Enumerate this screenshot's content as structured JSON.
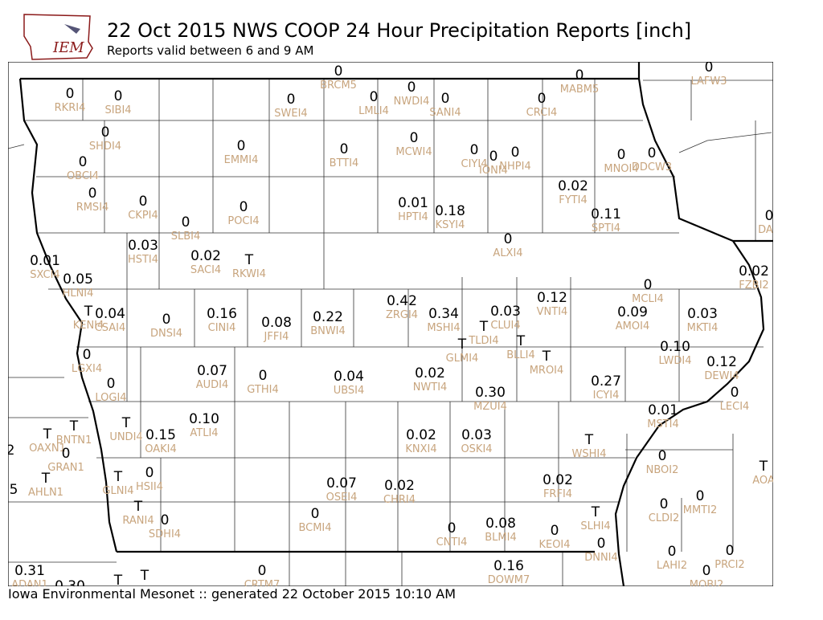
{
  "header": {
    "title": "22 Oct 2015 NWS COOP 24 Hour Precipitation Reports [inch]",
    "subtitle": "Reports valid between 6 and 9 AM",
    "logo_text": "IEM"
  },
  "footer": "Iowa Environmental Mesonet :: generated 22 October 2015 10:10 AM",
  "stations": [
    {
      "value": "0",
      "id": "BRCM5"
    },
    {
      "value": "0",
      "id": "RKRI4"
    },
    {
      "value": "0",
      "id": "SIBI4"
    },
    {
      "value": "0",
      "id": "SWEI4"
    },
    {
      "value": "0",
      "id": "LMLI4"
    },
    {
      "value": "0",
      "id": "NWDI4"
    },
    {
      "value": "0",
      "id": "SANI4"
    },
    {
      "value": "0",
      "id": "CRCI4"
    },
    {
      "value": "0",
      "id": "MABM5"
    },
    {
      "value": "0",
      "id": "LAFW3"
    },
    {
      "value": "0",
      "id": "SHDI4"
    },
    {
      "value": "0",
      "id": "OBCI4"
    },
    {
      "value": "0",
      "id": "EMMI4"
    },
    {
      "value": "0",
      "id": "BTTI4"
    },
    {
      "value": "0",
      "id": "MCWI4"
    },
    {
      "value": "0",
      "id": "CIYI4"
    },
    {
      "value": "0",
      "id": "IONI4"
    },
    {
      "value": "0",
      "id": "NHPI4"
    },
    {
      "value": "0",
      "id": "MNOI4"
    },
    {
      "value": "0",
      "id": "DDCW3"
    },
    {
      "value": "0.02",
      "id": "FYTI4"
    },
    {
      "value": "0",
      "id": "RMSI4"
    },
    {
      "value": "0",
      "id": "CKPI4"
    },
    {
      "value": "0",
      "id": "SLBI4"
    },
    {
      "value": "0",
      "id": "POCI4"
    },
    {
      "value": "0.01",
      "id": "HPTI4"
    },
    {
      "value": "0.18",
      "id": "KSYI4"
    },
    {
      "value": "0.11",
      "id": "SPTI4"
    },
    {
      "value": "0",
      "id": "DAR"
    },
    {
      "value": "0",
      "id": "ALXI4"
    },
    {
      "value": "0.03",
      "id": "HSTI4"
    },
    {
      "value": "0.02",
      "id": "SACI4"
    },
    {
      "value": "T",
      "id": "RKWI4"
    },
    {
      "value": "0.01",
      "id": "SXCI4"
    },
    {
      "value": "0.05",
      "id": "HLNI4"
    },
    {
      "value": "0.02",
      "id": "FZBI2"
    },
    {
      "value": "0",
      "id": "MCLI4"
    },
    {
      "value": "0.42",
      "id": "ZRGI4"
    },
    {
      "value": "0.12",
      "id": "VNTI4"
    },
    {
      "value": "T",
      "id": "KENI4"
    },
    {
      "value": "0.04",
      "id": "CSAI4"
    },
    {
      "value": "0",
      "id": "DNSI4"
    },
    {
      "value": "0.16",
      "id": "CINI4"
    },
    {
      "value": "0.08",
      "id": "JFFI4"
    },
    {
      "value": "0.22",
      "id": "BNWI4"
    },
    {
      "value": "0.34",
      "id": "MSHI4"
    },
    {
      "value": "0.03",
      "id": "CLUI4"
    },
    {
      "value": "0.09",
      "id": "AMOI4"
    },
    {
      "value": "0.03",
      "id": "MKTI4"
    },
    {
      "value": "T",
      "id": "TLDI4"
    },
    {
      "value": "T",
      "id": "GLMI4"
    },
    {
      "value": "T",
      "id": "BLLI4"
    },
    {
      "value": "0.10",
      "id": "LWDI4"
    },
    {
      "value": "0.12",
      "id": "DEWI4"
    },
    {
      "value": "0",
      "id": "LGXI4"
    },
    {
      "value": "T",
      "id": "MROI4"
    },
    {
      "value": "0.07",
      "id": "AUDI4"
    },
    {
      "value": "0",
      "id": "GTHI4"
    },
    {
      "value": "0.04",
      "id": "UBSI4"
    },
    {
      "value": "0.02",
      "id": "NWTI4"
    },
    {
      "value": "0.27",
      "id": "ICYI4"
    },
    {
      "value": "0",
      "id": "LOGI4"
    },
    {
      "value": "0.30",
      "id": "MZUI4"
    },
    {
      "value": "0",
      "id": "LECI4"
    },
    {
      "value": "0.01",
      "id": "MSTI4"
    },
    {
      "value": "T",
      "id": "UNDI4"
    },
    {
      "value": "0.15",
      "id": "OAKI4"
    },
    {
      "value": "0.10",
      "id": "ATLI4"
    },
    {
      "value": "T",
      "id": "OAXN1"
    },
    {
      "value": "T",
      "id": "BNTN1"
    },
    {
      "value": "0",
      "id": "GRAN1"
    },
    {
      "value": "0.02",
      "id": "KNXI4"
    },
    {
      "value": "0.03",
      "id": "OSKI4"
    },
    {
      "value": "T",
      "id": "WSHI4"
    },
    {
      "value": "0",
      "id": "NBOI2"
    },
    {
      "value": "T",
      "id": "AOA"
    },
    {
      "value": "2"
    },
    {
      "value": "T",
      "id": "AHLN1"
    },
    {
      "value": "0",
      "id": "HSII4"
    },
    {
      "value": "T",
      "id": "GLNI4"
    },
    {
      "value": "0.07",
      "id": "OSEI4"
    },
    {
      "value": "0.02",
      "id": "CHRI4"
    },
    {
      "value": "0.02",
      "id": "FRFI4"
    },
    {
      "value": "0",
      "id": "MMTI2"
    },
    {
      "value": "5"
    },
    {
      "value": "T",
      "id": "RANI4"
    },
    {
      "value": "0",
      "id": "SDHI4"
    },
    {
      "value": "0",
      "id": "BCMI4"
    },
    {
      "value": "T",
      "id": "SLHI4"
    },
    {
      "value": "0",
      "id": "CLDI2"
    },
    {
      "value": "0",
      "id": "CNTI4"
    },
    {
      "value": "0.08",
      "id": "BLMI4"
    },
    {
      "value": "0",
      "id": "KEOI4"
    },
    {
      "value": "0",
      "id": "DNNI4"
    },
    {
      "value": "0",
      "id": "LAHI2"
    },
    {
      "value": "0",
      "id": "PRCI2"
    },
    {
      "value": "0",
      "id": "MOBI2"
    },
    {
      "value": "0.16",
      "id": "DOWM7"
    },
    {
      "value": "0.31",
      "id": "ADAN1"
    },
    {
      "value": "0.30"
    },
    {
      "value": "0",
      "id": "CRTM7"
    },
    {
      "value": "T"
    },
    {
      "value": "T"
    }
  ]
}
